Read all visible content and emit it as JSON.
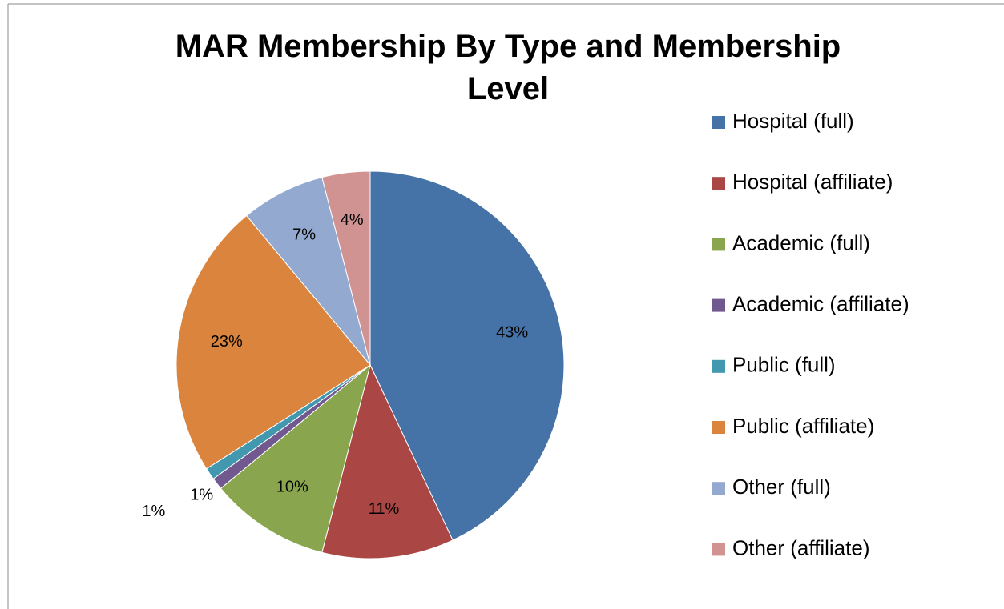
{
  "chart_data": {
    "type": "pie",
    "title": "MAR Membership By Type and Membership Level",
    "categories": [
      "Hospital (full)",
      "Hospital (affiliate)",
      "Academic (full)",
      "Academic (affiliate)",
      "Public (full)",
      "Public (affiliate)",
      "Other (full)",
      "Other (affiliate)"
    ],
    "values": [
      43,
      11,
      10,
      1,
      1,
      23,
      7,
      4
    ],
    "colors": [
      "#4572a7",
      "#aa4643",
      "#89a54e",
      "#71588f",
      "#4198af",
      "#db843d",
      "#93a9cf",
      "#d19392"
    ],
    "legend": "right"
  }
}
